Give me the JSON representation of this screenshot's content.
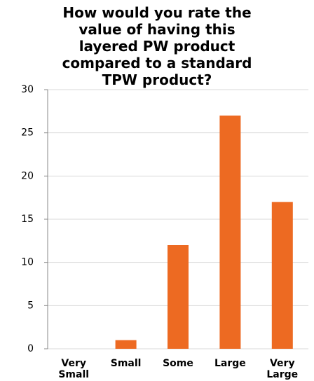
{
  "chart_data": {
    "type": "bar",
    "title": [
      "How would you rate the",
      "value of having this",
      "layered PW product",
      "compared to a standard",
      "TPW product?"
    ],
    "categories": [
      "Very Small",
      "Small",
      "Some",
      "Large",
      "Very Large"
    ],
    "values": [
      0,
      1,
      12,
      27,
      17
    ],
    "color": "#ed6a22",
    "ylim": [
      0,
      30
    ],
    "yticks": [
      0,
      5,
      10,
      15,
      20,
      25,
      30
    ],
    "grid": true
  }
}
